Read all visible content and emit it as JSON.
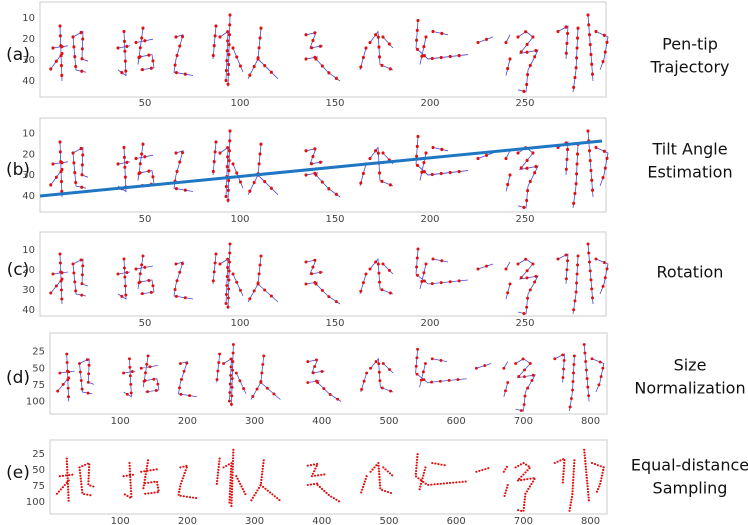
{
  "panels": [
    {
      "label": "(a)",
      "caption": [
        "Pen-tip",
        "Trajectory"
      ],
      "xticks": [
        50,
        100,
        150,
        200,
        250
      ],
      "yticks": [
        10,
        20,
        30,
        40
      ]
    },
    {
      "label": "(b)",
      "caption": [
        "Tilt Angle",
        "Estimation"
      ],
      "xticks": [
        50,
        100,
        150,
        200,
        250
      ],
      "yticks": [
        10,
        20,
        30,
        40
      ]
    },
    {
      "label": "(c)",
      "caption": [
        "Rotation"
      ],
      "xticks": [
        50,
        100,
        150,
        200,
        250
      ],
      "yticks": [
        10,
        20,
        30,
        40
      ]
    },
    {
      "label": "(d)",
      "caption": [
        "Size",
        "Normalization"
      ],
      "xticks": [
        100,
        200,
        300,
        400,
        500,
        600,
        700,
        800
      ],
      "yticks": [
        25,
        50,
        75,
        100
      ]
    },
    {
      "label": "(e)",
      "caption": [
        "Equal-distance",
        "Sampling"
      ],
      "xticks": [
        100,
        200,
        300,
        400,
        500,
        600,
        700,
        800
      ],
      "yticks": [
        25,
        50,
        75,
        100
      ]
    }
  ]
}
